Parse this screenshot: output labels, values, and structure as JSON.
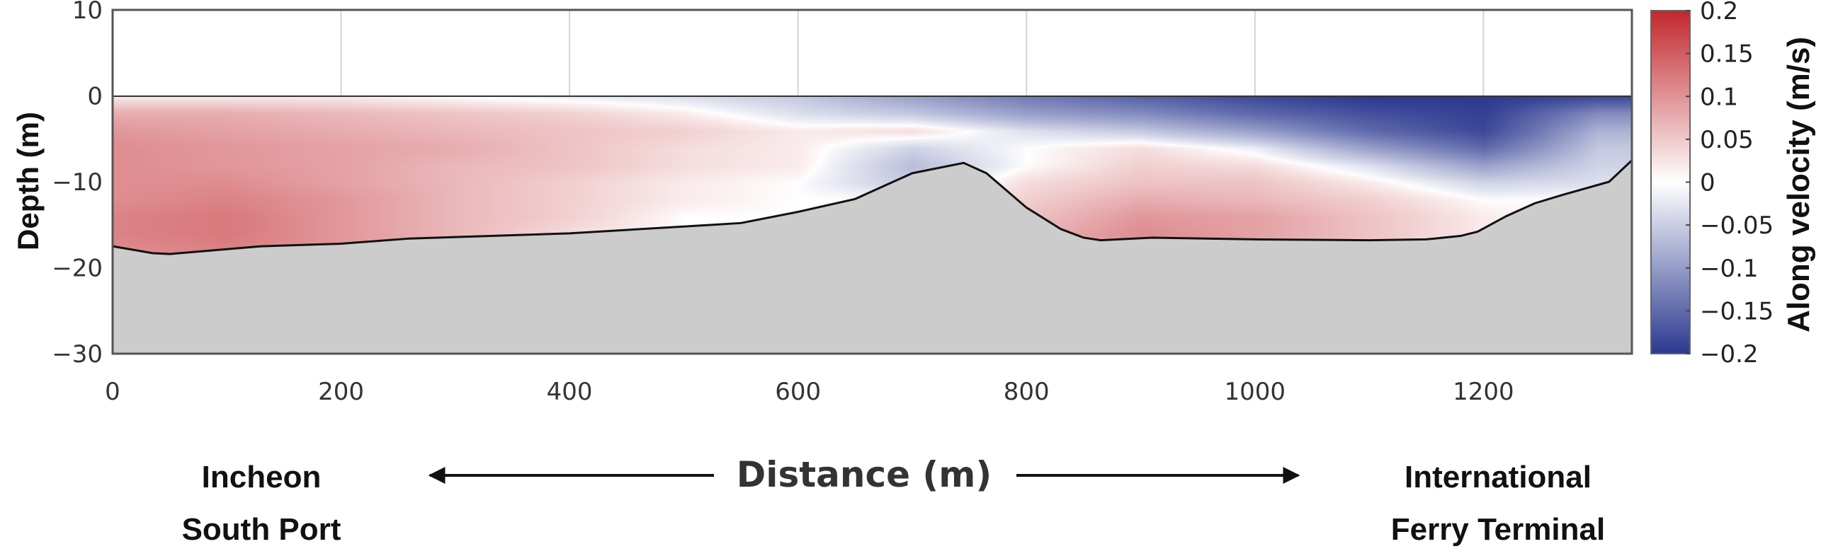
{
  "chart_data": {
    "type": "heatmap",
    "title": "",
    "xlabel": "Distance (m)",
    "ylabel": "Depth (m)",
    "colorbar_label": "Along velocity (m/s)",
    "xlim": [
      0,
      1330
    ],
    "ylim": [
      -30,
      10
    ],
    "xticks": [
      0,
      200,
      400,
      600,
      800,
      1000,
      1200
    ],
    "yticks": [
      10,
      0,
      -10,
      -20,
      -30
    ],
    "colorbar_ticks": [
      0.2,
      0.15,
      0.1,
      0.05,
      0,
      -0.05,
      -0.1,
      -0.15,
      -0.2
    ],
    "clim": [
      -0.2,
      0.2
    ],
    "colormap": {
      "low": "#2b3990",
      "mid": "#ffffff",
      "high": "#c1272d"
    },
    "seabed_color": "#cccccc",
    "grid": "vertical lines above surface",
    "velocity_grid": {
      "x": [
        0,
        100,
        200,
        300,
        400,
        500,
        600,
        700,
        800,
        900,
        1000,
        1100,
        1200,
        1300
      ],
      "depth": [
        0,
        -2,
        -4,
        -6,
        -8,
        -10,
        -12,
        -14,
        -16,
        -18
      ],
      "values": [
        [
          0.01,
          0.01,
          0.01,
          0.0,
          -0.01,
          -0.02,
          -0.04,
          -0.08,
          -0.12,
          -0.15,
          -0.18,
          -0.2,
          -0.2,
          -0.18
        ],
        [
          0.06,
          0.06,
          0.05,
          0.04,
          0.03,
          0.01,
          -0.02,
          -0.04,
          -0.08,
          -0.1,
          -0.14,
          -0.17,
          -0.19,
          -0.1
        ],
        [
          0.08,
          0.07,
          0.06,
          0.05,
          0.04,
          0.03,
          0.01,
          0.02,
          -0.02,
          -0.04,
          -0.08,
          -0.14,
          -0.18,
          -0.06
        ],
        [
          0.09,
          0.08,
          0.07,
          0.06,
          0.04,
          0.02,
          0.01,
          -0.03,
          0.0,
          0.02,
          -0.01,
          -0.08,
          -0.14,
          -0.04
        ],
        [
          0.09,
          0.08,
          0.07,
          0.05,
          0.04,
          0.02,
          0.01,
          -0.05,
          0.0,
          0.03,
          0.02,
          -0.02,
          -0.08,
          -0.03
        ],
        [
          0.09,
          0.09,
          0.07,
          0.05,
          0.03,
          0.01,
          0.0,
          -0.04,
          0.02,
          0.04,
          0.04,
          0.01,
          -0.03,
          -0.02
        ],
        [
          0.09,
          0.1,
          0.08,
          0.05,
          0.03,
          0.01,
          0.0,
          0.0,
          0.03,
          0.06,
          0.05,
          0.03,
          0.0,
          0.0
        ],
        [
          0.1,
          0.11,
          0.08,
          0.05,
          0.03,
          0.0,
          0.0,
          0.0,
          0.04,
          0.08,
          0.07,
          0.04,
          0.01,
          0.0
        ],
        [
          0.1,
          0.11,
          0.08,
          0.05,
          0.02,
          0.0,
          0.0,
          0.0,
          0.05,
          0.09,
          0.07,
          0.04,
          0.01,
          0.0
        ],
        [
          0.09,
          0.1,
          0.08,
          0.05,
          0.02,
          0.0,
          0.0,
          0.0,
          0.05,
          0.08,
          0.06,
          0.03,
          0.0,
          0.0
        ]
      ]
    },
    "bathymetry": {
      "x": [
        0,
        35,
        50,
        130,
        200,
        260,
        400,
        550,
        600,
        650,
        700,
        745,
        765,
        800,
        830,
        850,
        865,
        910,
        1000,
        1100,
        1150,
        1180,
        1195,
        1220,
        1245,
        1270,
        1310,
        1330
      ],
      "depth": [
        -17.5,
        -18.3,
        -18.4,
        -17.5,
        -17.2,
        -16.6,
        -16.0,
        -14.8,
        -13.5,
        -12.0,
        -9.0,
        -7.8,
        -9.0,
        -13.0,
        -15.5,
        -16.5,
        -16.8,
        -16.5,
        -16.7,
        -16.8,
        -16.7,
        -16.3,
        -15.8,
        -14.0,
        -12.5,
        -11.5,
        -10.0,
        -7.5
      ]
    }
  },
  "annotations": {
    "left_location_line1": "Incheon",
    "left_location_line2": "South Port",
    "right_location_line1": "International",
    "right_location_line2": "Ferry Terminal"
  }
}
